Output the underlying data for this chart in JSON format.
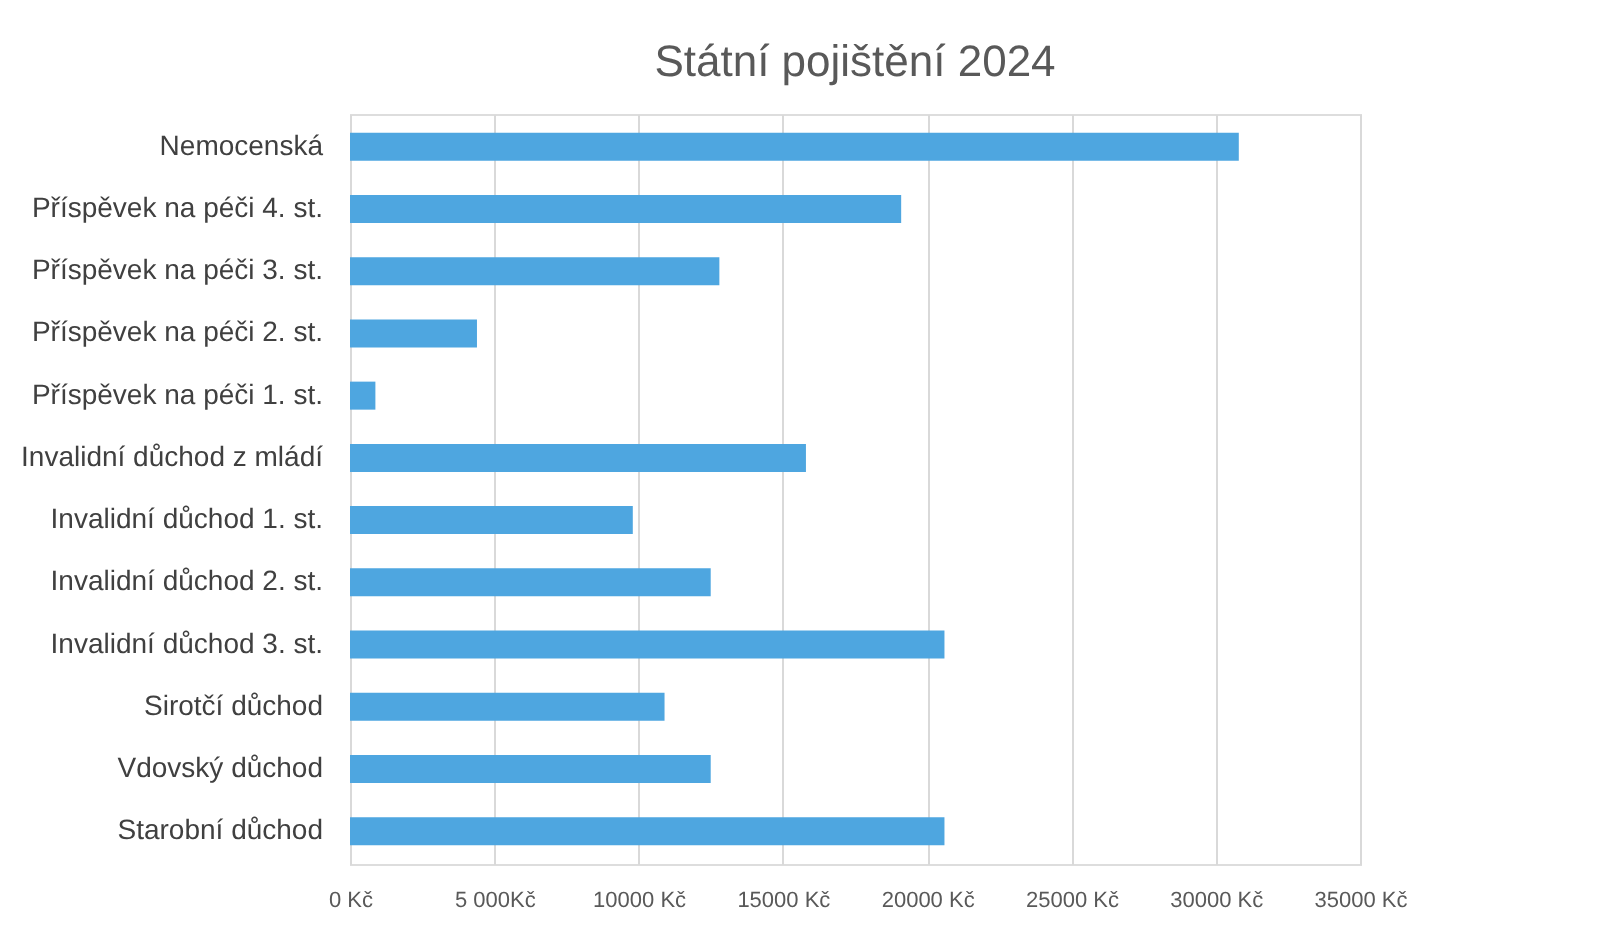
{
  "chart_data": {
    "type": "bar",
    "orientation": "horizontal",
    "title": "Státní pojištění 2024",
    "categories": [
      "Nemocenská",
      "Příspěvek na péči 4. st.",
      "Příspěvek na péči 3. st.",
      "Příspěvek na péči 2. st.",
      "Příspěvek na péči 1. st.",
      "Invalidní důchod z mládí",
      "Invalidní důchod 1. st.",
      "Invalidní důchod 2. st.",
      "Invalidní důchod 3. st.",
      "Sirotčí důchod",
      "Vdovský důchod",
      "Starobní důchod"
    ],
    "values": [
      30800,
      19100,
      12800,
      4400,
      880,
      15800,
      9800,
      12500,
      20600,
      10900,
      12500,
      20600
    ],
    "color": "#4ea6e0",
    "xlim": [
      0,
      35000
    ],
    "xticks": [
      {
        "value": 0,
        "label": "0 Kč"
      },
      {
        "value": 5000,
        "label": "5 000Kč"
      },
      {
        "value": 10000,
        "label": "10000 Kč"
      },
      {
        "value": 15000,
        "label": "15000 Kč"
      },
      {
        "value": 20000,
        "label": "20000 Kč"
      },
      {
        "value": 25000,
        "label": "25000 Kč"
      },
      {
        "value": 30000,
        "label": "30000 Kč"
      },
      {
        "value": 35000,
        "label": "35000 Kč"
      }
    ],
    "grid": "x"
  }
}
